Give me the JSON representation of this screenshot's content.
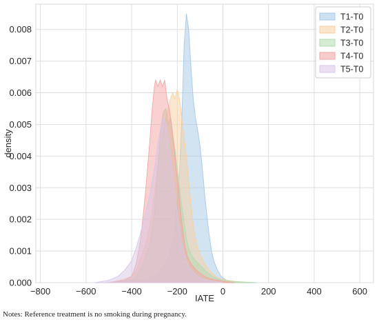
{
  "chart_data": {
    "type": "area",
    "xlabel": "IATE",
    "ylabel": "density",
    "xlim": [
      -820,
      660
    ],
    "ylim": [
      0,
      0.0088
    ],
    "xticks": [
      -800,
      -600,
      -400,
      -200,
      0,
      200,
      400,
      600
    ],
    "xtick_labels": [
      "−800",
      "−600",
      "−400",
      "−200",
      "0",
      "200",
      "400",
      "600"
    ],
    "yticks": [
      0.0,
      0.001,
      0.002,
      0.003,
      0.004,
      0.005,
      0.006,
      0.007,
      0.008
    ],
    "ytick_labels": [
      "0.000",
      "0.001",
      "0.002",
      "0.003",
      "0.004",
      "0.005",
      "0.006",
      "0.007",
      "0.008"
    ],
    "grid": true,
    "legend_position": "top-right",
    "series": [
      {
        "name": "T1-T0",
        "color": "#a6c8e6",
        "x": [
          -480,
          -400,
          -350,
          -300,
          -250,
          -230,
          -210,
          -190,
          -180,
          -170,
          -160,
          -150,
          -140,
          -130,
          -120,
          -110,
          -100,
          -90,
          -80,
          -70,
          -60,
          -50,
          -40,
          -30,
          -20,
          -10,
          0,
          20,
          50,
          100,
          150
        ],
        "y": [
          0,
          5e-05,
          0.0001,
          0.0002,
          0.0006,
          0.001,
          0.0017,
          0.0035,
          0.0052,
          0.0075,
          0.0085,
          0.008,
          0.0068,
          0.0058,
          0.0052,
          0.0048,
          0.0043,
          0.0036,
          0.0028,
          0.0021,
          0.0015,
          0.001,
          0.0007,
          0.0005,
          0.00035,
          0.00022,
          0.00015,
          6e-05,
          2e-05,
          1e-05,
          0
        ]
      },
      {
        "name": "T2-T0",
        "color": "#f8cfa0",
        "x": [
          -500,
          -450,
          -400,
          -380,
          -360,
          -340,
          -320,
          -300,
          -280,
          -260,
          -250,
          -240,
          -230,
          -220,
          -210,
          -200,
          -190,
          -180,
          -170,
          -160,
          -150,
          -140,
          -130,
          -120,
          -110,
          -100,
          -80,
          -60,
          -40,
          -20,
          0,
          50,
          100
        ],
        "y": [
          0,
          8e-05,
          0.0002,
          0.0004,
          0.0008,
          0.0012,
          0.0018,
          0.0028,
          0.004,
          0.0048,
          0.0052,
          0.0055,
          0.0058,
          0.006,
          0.0058,
          0.0061,
          0.0058,
          0.0052,
          0.0046,
          0.004,
          0.0032,
          0.0025,
          0.0018,
          0.0014,
          0.0011,
          0.0009,
          0.0006,
          0.0004,
          0.00025,
          0.00015,
          0.0001,
          4e-05,
          0
        ]
      },
      {
        "name": "T3-T0",
        "color": "#b4dab0",
        "x": [
          -520,
          -450,
          -400,
          -380,
          -350,
          -320,
          -300,
          -290,
          -280,
          -270,
          -260,
          -250,
          -240,
          -230,
          -220,
          -210,
          -200,
          -190,
          -180,
          -170,
          -160,
          -150,
          -140,
          -130,
          -120,
          -100,
          -80,
          -60,
          -40,
          -20,
          0,
          20,
          50,
          100,
          150
        ],
        "y": [
          0,
          5e-05,
          0.0001,
          0.0002,
          0.0006,
          0.0012,
          0.0022,
          0.0032,
          0.0042,
          0.005,
          0.0054,
          0.0055,
          0.005,
          0.0052,
          0.0046,
          0.0042,
          0.0036,
          0.003,
          0.0024,
          0.0019,
          0.0014,
          0.0011,
          0.0009,
          0.0008,
          0.0007,
          0.00055,
          0.0004,
          0.00028,
          0.00018,
          0.00012,
          8e-05,
          6e-05,
          4e-05,
          2e-05,
          0
        ]
      },
      {
        "name": "T4-T0",
        "color": "#f4a3a3",
        "x": [
          -500,
          -430,
          -400,
          -380,
          -360,
          -340,
          -320,
          -310,
          -300,
          -295,
          -285,
          -275,
          -265,
          -255,
          -245,
          -235,
          -225,
          -215,
          -205,
          -195,
          -185,
          -175,
          -165,
          -155,
          -140,
          -120,
          -100,
          -80,
          -60,
          -40,
          -20,
          0,
          50
        ],
        "y": [
          0,
          8e-05,
          0.0002,
          0.0006,
          0.0014,
          0.0028,
          0.0045,
          0.0055,
          0.0062,
          0.0064,
          0.0062,
          0.0064,
          0.0062,
          0.0064,
          0.0058,
          0.0055,
          0.005,
          0.0044,
          0.0036,
          0.003,
          0.0022,
          0.0016,
          0.0011,
          0.0008,
          0.0006,
          0.00042,
          0.0003,
          0.0002,
          0.00014,
          0.0001,
          7e-05,
          4e-05,
          0
        ]
      },
      {
        "name": "T5-T0",
        "color": "#d8c6e6",
        "x": [
          -560,
          -500,
          -460,
          -430,
          -400,
          -380,
          -360,
          -340,
          -320,
          -300,
          -285,
          -270,
          -260,
          -250,
          -240,
          -230,
          -220,
          -210,
          -200,
          -190,
          -180,
          -170,
          -160,
          -150,
          -140,
          -120,
          -100,
          -80,
          -60,
          -40,
          -20,
          0
        ],
        "y": [
          0,
          8e-05,
          0.0002,
          0.0004,
          0.0007,
          0.0011,
          0.0016,
          0.0022,
          0.0028,
          0.0036,
          0.0044,
          0.005,
          0.0052,
          0.005,
          0.0046,
          0.004,
          0.0034,
          0.0028,
          0.0022,
          0.0017,
          0.0012,
          0.0009,
          0.0007,
          0.0005,
          0.0004,
          0.00025,
          0.00016,
          0.0001,
          6e-05,
          4e-05,
          2e-05,
          0
        ]
      }
    ]
  },
  "note": "Notes: Reference treatment is no smoking during pregnancy."
}
